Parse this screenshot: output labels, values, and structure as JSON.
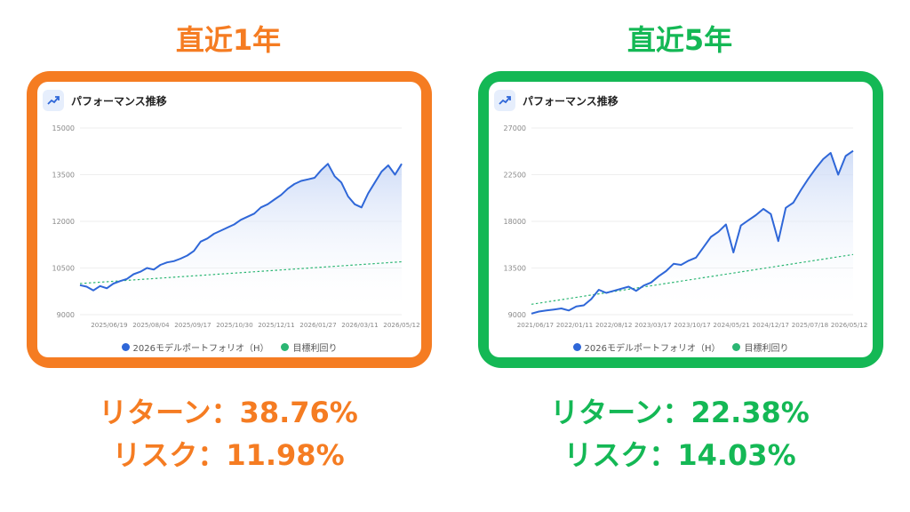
{
  "colors": {
    "orange": "#f57c22",
    "green": "#14b855",
    "line": "#2f67d8",
    "target": "#2bb673",
    "grid": "#eeeeee"
  },
  "panels": [
    {
      "heading": "直近1年",
      "card_title": "パフォーマンス推移",
      "return_text": "リターン：38.76%",
      "risk_text": "リスク：11.98%",
      "legend": [
        "2026モデルポートフォリオ（H）",
        "目標利回り"
      ]
    },
    {
      "heading": "直近5年",
      "card_title": "パフォーマンス推移",
      "return_text": "リターン：22.38%",
      "risk_text": "リスク：14.03%",
      "legend": [
        "2026モデルポートフォリオ（H）",
        "目標利回り"
      ]
    }
  ],
  "chart_data": [
    {
      "type": "line",
      "ylim": [
        9000,
        15000
      ],
      "yticks": [
        9000,
        10500,
        12000,
        13500,
        15000
      ],
      "x_tick_labels": [
        "2025/06/19",
        "2025/08/04",
        "2025/09/17",
        "2025/10/30",
        "2025/12/11",
        "2026/01/27",
        "2026/03/11",
        "2026/05/12"
      ],
      "series": [
        {
          "name": "2026モデルポートフォリオ（H）",
          "values": [
            9950,
            9900,
            9780,
            9920,
            9850,
            10000,
            10080,
            10150,
            10300,
            10380,
            10500,
            10450,
            10600,
            10680,
            10720,
            10800,
            10900,
            11050,
            11350,
            11450,
            11600,
            11700,
            11800,
            11900,
            12050,
            12150,
            12250,
            12450,
            12550,
            12700,
            12850,
            13050,
            13200,
            13300,
            13350,
            13400,
            13650,
            13850,
            13450,
            13250,
            12800,
            12550,
            12450,
            12900,
            13250,
            13600,
            13800,
            13500,
            13850
          ]
        },
        {
          "name": "目標利回り",
          "values": [
            10000,
            10700
          ]
        }
      ]
    },
    {
      "type": "line",
      "ylim": [
        9000,
        27000
      ],
      "yticks": [
        9000,
        13500,
        18000,
        22500,
        27000
      ],
      "x_tick_labels": [
        "2021/06/17",
        "2022/01/11",
        "2022/08/12",
        "2023/03/17",
        "2023/10/17",
        "2024/05/21",
        "2024/12/17",
        "2025/07/18",
        "2026/05/12"
      ],
      "series": [
        {
          "name": "2026モデルポートフォリオ（H）",
          "values": [
            9100,
            9300,
            9400,
            9500,
            9600,
            9400,
            9800,
            9900,
            10500,
            11400,
            11100,
            11300,
            11500,
            11700,
            11300,
            11800,
            12100,
            12700,
            13200,
            13900,
            13800,
            14200,
            14500,
            15500,
            16500,
            17000,
            17700,
            15000,
            17600,
            18100,
            18600,
            19200,
            18700,
            16100,
            19300,
            19800,
            21000,
            22100,
            23100,
            24000,
            24600,
            22500,
            24300,
            24800
          ]
        },
        {
          "name": "目標利回り",
          "values": [
            10000,
            14800
          ]
        }
      ]
    }
  ]
}
